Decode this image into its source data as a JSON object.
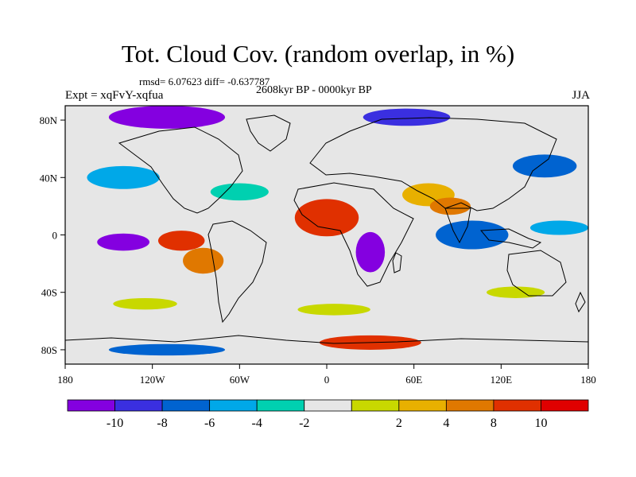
{
  "header": {
    "title": "Tot. Cloud Cov. (random overlap, in %)",
    "stats": "rmsd= 6.07623  diff= -0.637787",
    "period": "2608kyr BP - 0000kyr BP",
    "experiment": "Expt = xqFvY-xqfua",
    "season": "JJA"
  },
  "map": {
    "lon_ticks": [
      {
        "value": -180,
        "label": "180"
      },
      {
        "value": -120,
        "label": "120W"
      },
      {
        "value": -60,
        "label": "60W"
      },
      {
        "value": 0,
        "label": "0"
      },
      {
        "value": 60,
        "label": "60E"
      },
      {
        "value": 120,
        "label": "120E"
      },
      {
        "value": 180,
        "label": "180"
      }
    ],
    "lat_ticks": [
      {
        "value": 80,
        "label": "80N"
      },
      {
        "value": 40,
        "label": "40N"
      },
      {
        "value": 0,
        "label": "0"
      },
      {
        "value": -40,
        "label": "40S"
      },
      {
        "value": -80,
        "label": "80S"
      }
    ],
    "background_color": "#e6e6e6",
    "anomaly_regions": [
      {
        "lon": 0,
        "lat": 12,
        "rlon": 22,
        "rlat": 13,
        "level": 9
      },
      {
        "lon": -100,
        "lat": -4,
        "rlon": 16,
        "rlat": 7,
        "level": 9
      },
      {
        "lon": -85,
        "lat": -18,
        "rlon": 14,
        "rlat": 9,
        "level": 8
      },
      {
        "lon": 70,
        "lat": 28,
        "rlon": 18,
        "rlat": 8,
        "level": 7
      },
      {
        "lon": 85,
        "lat": 20,
        "rlon": 14,
        "rlat": 6,
        "level": 8
      },
      {
        "lon": 150,
        "lat": 48,
        "rlon": 22,
        "rlat": 8,
        "level": 2
      },
      {
        "lon": 5,
        "lat": -52,
        "rlon": 25,
        "rlat": 4,
        "level": 6
      },
      {
        "lon": 130,
        "lat": -40,
        "rlon": 20,
        "rlat": 4,
        "level": 6
      },
      {
        "lon": -125,
        "lat": -48,
        "rlon": 22,
        "rlat": 4,
        "level": 6
      },
      {
        "lon": 30,
        "lat": -12,
        "rlon": 10,
        "rlat": 14,
        "level": 0
      },
      {
        "lon": -140,
        "lat": -5,
        "rlon": 18,
        "rlat": 6,
        "level": 0
      },
      {
        "lon": -110,
        "lat": 82,
        "rlon": 40,
        "rlat": 8,
        "level": 0
      },
      {
        "lon": 55,
        "lat": 82,
        "rlon": 30,
        "rlat": 6,
        "level": 1
      },
      {
        "lon": 100,
        "lat": 0,
        "rlon": 25,
        "rlat": 10,
        "level": 2
      },
      {
        "lon": 160,
        "lat": 5,
        "rlon": 20,
        "rlat": 5,
        "level": 3
      },
      {
        "lon": -140,
        "lat": 40,
        "rlon": 25,
        "rlat": 8,
        "level": 3
      },
      {
        "lon": -60,
        "lat": 30,
        "rlon": 20,
        "rlat": 6,
        "level": 4
      },
      {
        "lon": 30,
        "lat": -75,
        "rlon": 35,
        "rlat": 5,
        "level": 9
      },
      {
        "lon": -110,
        "lat": -80,
        "rlon": 40,
        "rlat": 4,
        "level": 2
      }
    ]
  },
  "colorbar": {
    "colors": [
      "#8400e0",
      "#3a2fe0",
      "#0063d0",
      "#00a8e8",
      "#00d0b0",
      "#e6e6e6",
      "#c8d800",
      "#e8b000",
      "#e07800",
      "#e03000",
      "#e00000"
    ],
    "labels": [
      "-10",
      "-8",
      "-6",
      "-4",
      "-2",
      "2",
      "4",
      "8",
      "10"
    ]
  }
}
